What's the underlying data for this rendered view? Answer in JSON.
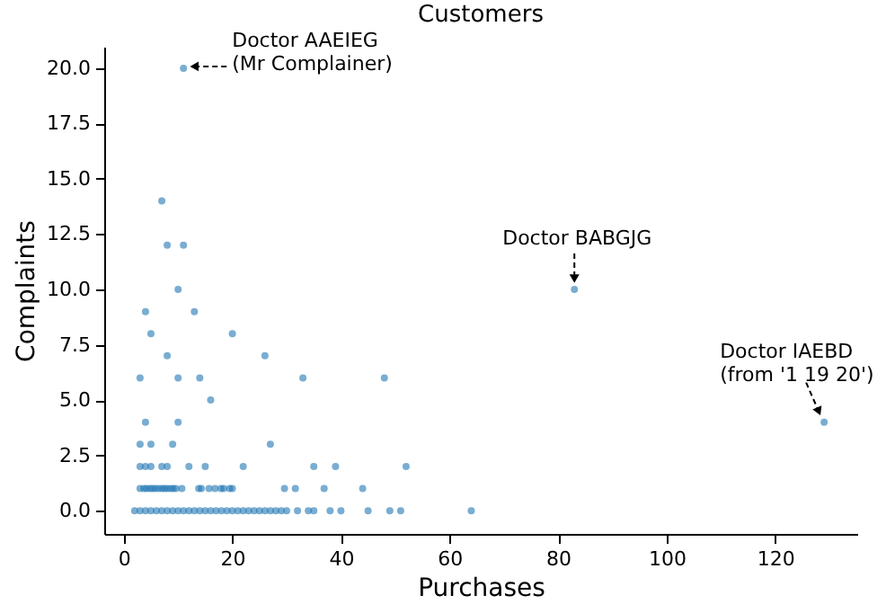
{
  "chart_data": {
    "type": "scatter",
    "title": "Customers",
    "xlabel": "Purchases",
    "ylabel": "Complaints",
    "marker": "circle",
    "color": "#1f77b4",
    "x": [
      11,
      7,
      8,
      11,
      10,
      83,
      4,
      13,
      5,
      20,
      8,
      26,
      3,
      10,
      14,
      33,
      48,
      16,
      4,
      10,
      129,
      3,
      5,
      9,
      27,
      3,
      4,
      5,
      7,
      8,
      12,
      15,
      22,
      35,
      39,
      52,
      3,
      3.7,
      4.2,
      4.8,
      5.3,
      5.8,
      6.4,
      7,
      7.5,
      8,
      8.6,
      9.1,
      9.6,
      10.7,
      13.8,
      14.3,
      15.7,
      16.8,
      17.9,
      18.4,
      19.5,
      20,
      29.6,
      31.6,
      36.9,
      44,
      2,
      3,
      4,
      5,
      6,
      7,
      8,
      9,
      10,
      11,
      12,
      13,
      14,
      15,
      16,
      17,
      18,
      19,
      20,
      21,
      22,
      23,
      24,
      25,
      26,
      27,
      28,
      29,
      30,
      32,
      34,
      35,
      38,
      40,
      45,
      49,
      51,
      64
    ],
    "values": [
      20,
      14,
      12,
      12,
      10,
      10,
      9,
      9,
      8,
      8,
      7,
      7,
      6,
      6,
      6,
      6,
      6,
      5,
      4,
      4,
      4,
      3,
      3,
      3,
      3,
      2,
      2,
      2,
      2,
      2,
      2,
      2,
      2,
      2,
      2,
      2,
      1,
      1,
      1,
      1,
      1,
      1,
      1,
      1,
      1,
      1,
      1,
      1,
      1,
      1,
      1,
      1,
      1,
      1,
      1,
      1,
      1,
      1,
      1,
      1,
      1,
      1,
      0,
      0,
      0,
      0,
      0,
      0,
      0,
      0,
      0,
      0,
      0,
      0,
      0,
      0,
      0,
      0,
      0,
      0,
      0,
      0,
      0,
      0,
      0,
      0,
      0,
      0,
      0,
      0,
      0,
      0,
      0,
      0,
      0,
      0,
      0,
      0,
      0,
      0
    ],
    "xlim": [
      -3.6,
      135.1
    ],
    "ylim": [
      -1.05,
      20.97
    ],
    "xticks": [
      0,
      20,
      40,
      60,
      80,
      100,
      120
    ],
    "yticks": [
      {
        "value": 0,
        "label": "0.0"
      },
      {
        "value": 2.5,
        "label": "2.5"
      },
      {
        "value": 5,
        "label": "5.0"
      },
      {
        "value": 7.5,
        "label": "7.5"
      },
      {
        "value": 10,
        "label": "10.0"
      },
      {
        "value": 12.5,
        "label": "12.5"
      },
      {
        "value": 15,
        "label": "15.0"
      },
      {
        "value": 17.5,
        "label": "17.5"
      },
      {
        "value": 20,
        "label": "20.0"
      }
    ],
    "annotations": [
      {
        "text": "Doctor AAEIEG\n(Mr Complainer)",
        "x": 11,
        "y": 20
      },
      {
        "text": "Doctor BABGJG",
        "x": 83,
        "y": 10
      },
      {
        "text": "Doctor IAEBD\n(from '1 19 20')",
        "x": 129,
        "y": 4
      }
    ]
  }
}
